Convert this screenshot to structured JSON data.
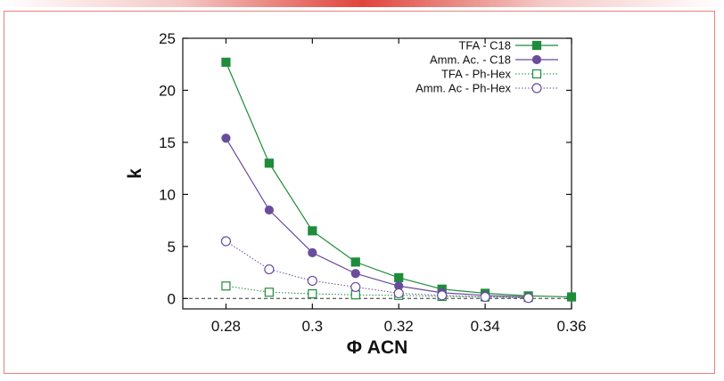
{
  "chart_data": {
    "type": "line",
    "title": "",
    "xlabel": "Φ ACN",
    "ylabel": "k",
    "xlim": [
      0.27,
      0.36
    ],
    "ylim": [
      -1,
      25
    ],
    "xticks": [
      0.28,
      0.3,
      0.32,
      0.34,
      0.36
    ],
    "xtick_labels": [
      "0.28",
      "0.3",
      "0.32",
      "0.34",
      "0.36"
    ],
    "yticks": [
      0,
      5,
      10,
      15,
      20,
      25
    ],
    "ytick_labels": [
      "0",
      "5",
      "10",
      "15",
      "20",
      "25"
    ],
    "legend_position": "top-right",
    "series": [
      {
        "name": "TFA - C18",
        "color": "#1e8c3a",
        "marker": "square-filled",
        "line": "solid",
        "x": [
          0.28,
          0.29,
          0.3,
          0.31,
          0.32,
          0.33,
          0.34,
          0.35,
          0.36
        ],
        "values": [
          22.7,
          13.0,
          6.5,
          3.5,
          2.0,
          0.9,
          0.5,
          0.25,
          0.15
        ]
      },
      {
        "name": "Amm. Ac. - C18",
        "color": "#6a4c9c",
        "marker": "circle-filled",
        "line": "solid",
        "x": [
          0.28,
          0.29,
          0.3,
          0.31,
          0.32,
          0.33,
          0.34,
          0.35
        ],
        "values": [
          15.4,
          8.5,
          4.4,
          2.4,
          1.2,
          0.55,
          0.3,
          0.15
        ]
      },
      {
        "name": "TFA - Ph-Hex",
        "color": "#1e8c3a",
        "marker": "square-open",
        "line": "dotted",
        "x": [
          0.28,
          0.29,
          0.3,
          0.31,
          0.32,
          0.33,
          0.34,
          0.35
        ],
        "values": [
          1.2,
          0.6,
          0.45,
          0.35,
          0.3,
          0.2,
          0.15,
          0.1
        ]
      },
      {
        "name": "Amm. Ac - Ph-Hex",
        "color": "#6a4c9c",
        "marker": "circle-open",
        "line": "dotted",
        "x": [
          0.28,
          0.29,
          0.3,
          0.31,
          0.32,
          0.33,
          0.34,
          0.35
        ],
        "values": [
          5.5,
          2.8,
          1.7,
          1.1,
          0.5,
          0.3,
          0.15,
          0.05
        ]
      }
    ]
  }
}
